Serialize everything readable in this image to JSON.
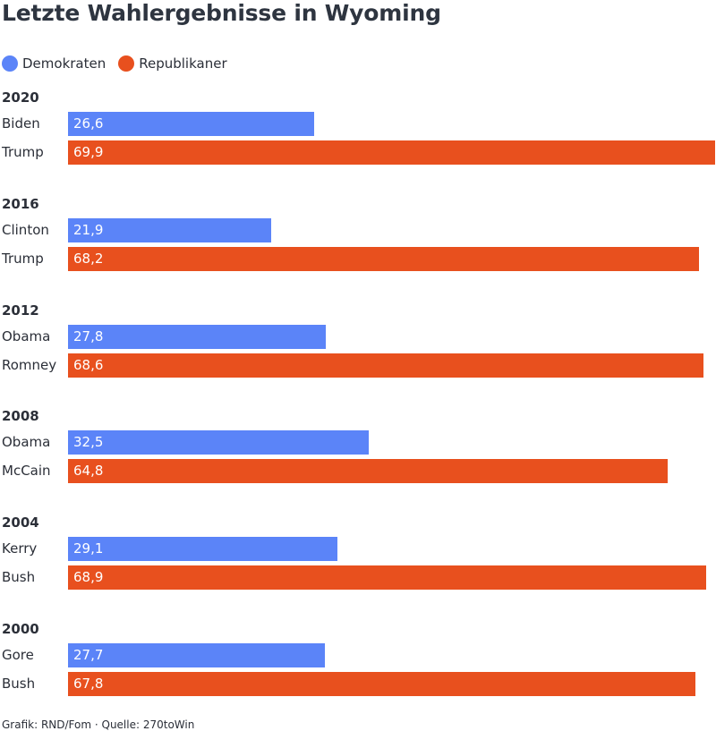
{
  "title": "Letzte Wahlergebnisse in Wyoming",
  "legend": [
    {
      "label": "Demokraten",
      "color": "#5b84f8"
    },
    {
      "label": "Republikaner",
      "color": "#e8501e"
    }
  ],
  "footer": "Grafik: RND/Fom · Quelle: 270toWin",
  "chart_data": {
    "type": "bar",
    "orientation": "horizontal",
    "title": "Letzte Wahlergebnisse in Wyoming",
    "xlim": [
      0,
      69.9
    ],
    "grid": false,
    "legend_position": "top-left",
    "series_colors": {
      "Demokraten": "#5b84f8",
      "Republikaner": "#e8501e"
    },
    "groups": [
      {
        "year": "2020",
        "bars": [
          {
            "candidate": "Biden",
            "party": "Demokraten",
            "value": 26.6,
            "label": "26,6"
          },
          {
            "candidate": "Trump",
            "party": "Republikaner",
            "value": 69.9,
            "label": "69,9"
          }
        ]
      },
      {
        "year": "2016",
        "bars": [
          {
            "candidate": "Clinton",
            "party": "Demokraten",
            "value": 21.9,
            "label": "21,9"
          },
          {
            "candidate": "Trump",
            "party": "Republikaner",
            "value": 68.2,
            "label": "68,2"
          }
        ]
      },
      {
        "year": "2012",
        "bars": [
          {
            "candidate": "Obama",
            "party": "Demokraten",
            "value": 27.8,
            "label": "27,8"
          },
          {
            "candidate": "Romney",
            "party": "Republikaner",
            "value": 68.6,
            "label": "68,6"
          }
        ]
      },
      {
        "year": "2008",
        "bars": [
          {
            "candidate": "Obama",
            "party": "Demokraten",
            "value": 32.5,
            "label": "32,5"
          },
          {
            "candidate": "McCain",
            "party": "Republikaner",
            "value": 64.8,
            "label": "64,8"
          }
        ]
      },
      {
        "year": "2004",
        "bars": [
          {
            "candidate": "Kerry",
            "party": "Demokraten",
            "value": 29.1,
            "label": "29,1"
          },
          {
            "candidate": "Bush",
            "party": "Republikaner",
            "value": 68.9,
            "label": "68,9"
          }
        ]
      },
      {
        "year": "2000",
        "bars": [
          {
            "candidate": "Gore",
            "party": "Demokraten",
            "value": 27.7,
            "label": "27,7"
          },
          {
            "candidate": "Bush",
            "party": "Republikaner",
            "value": 67.8,
            "label": "67,8"
          }
        ]
      }
    ]
  }
}
